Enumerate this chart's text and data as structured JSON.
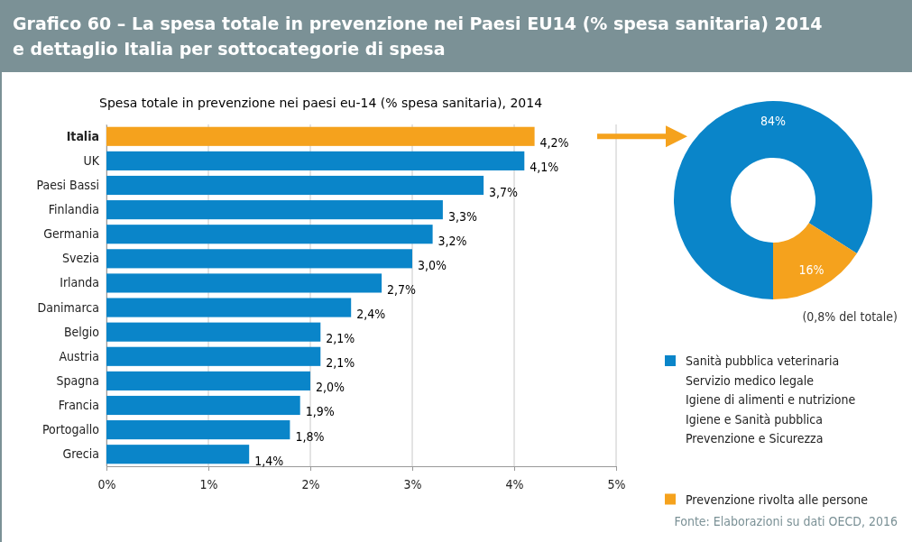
{
  "chart_data": [
    {
      "type": "bar",
      "orientation": "horizontal",
      "title": "Grafico 60 – La spesa totale in prevenzione nei Paesi EU14 (% spesa sanitaria) 2014\ne dettaglio Italia per sottocategorie di spesa",
      "subtitle": "Spesa totale in prevenzione nei paesi eu-14 (% spesa sanitaria), 2014",
      "categories": [
        "Italia",
        "UK",
        "Paesi Bassi",
        "Finlandia",
        "Germania",
        "Svezia",
        "Irlanda",
        "Danimarca",
        "Belgio",
        "Austria",
        "Spagna",
        "Francia",
        "Portogallo",
        "Grecia"
      ],
      "values": [
        4.2,
        4.1,
        3.7,
        3.3,
        3.2,
        3.0,
        2.7,
        2.4,
        2.1,
        2.1,
        2.0,
        1.9,
        1.8,
        1.4
      ],
      "colors": [
        "#f5a21d",
        "#0a85c9",
        "#0a85c9",
        "#0a85c9",
        "#0a85c9",
        "#0a85c9",
        "#0a85c9",
        "#0a85c9",
        "#0a85c9",
        "#0a85c9",
        "#0a85c9",
        "#0a85c9",
        "#0a85c9",
        "#0a85c9"
      ],
      "value_labels": [
        "4,2%",
        "4,1%",
        "3,7%",
        "3,3%",
        "3,2%",
        "3,0%",
        "2,7%",
        "2,4%",
        "2,1%",
        "2,1%",
        "2,0%",
        "1,9%",
        "1,8%",
        "1,4%"
      ],
      "xlim": [
        0,
        5
      ],
      "xticks": [
        {
          "value": 0,
          "label": "0%"
        },
        {
          "value": 1,
          "label": "1%"
        },
        {
          "value": 2,
          "label": "2%"
        },
        {
          "value": 3,
          "label": "3%"
        },
        {
          "value": 4,
          "label": "4%"
        },
        {
          "value": 5,
          "label": "5%"
        }
      ],
      "grid": "x",
      "annotations": [
        "Fonte: Elaborazioni su dati OECD, 2016"
      ]
    },
    {
      "type": "donut",
      "categories": [
        "Sanità pubblica veterinaria\nServizio medico legale\nIgiene di alimenti e nutrizione\nIgiene e Sanità pubblica\nPrevenzione e Sicurezza",
        "Prevenzione rivolta alle persone"
      ],
      "values": [
        84,
        16
      ],
      "colors": [
        "#0a85c9",
        "#f5a21d"
      ],
      "value_labels": [
        "84%",
        "16%"
      ],
      "legend": "bottom right",
      "annotations": [
        "(0,8% del totale)"
      ]
    }
  ]
}
